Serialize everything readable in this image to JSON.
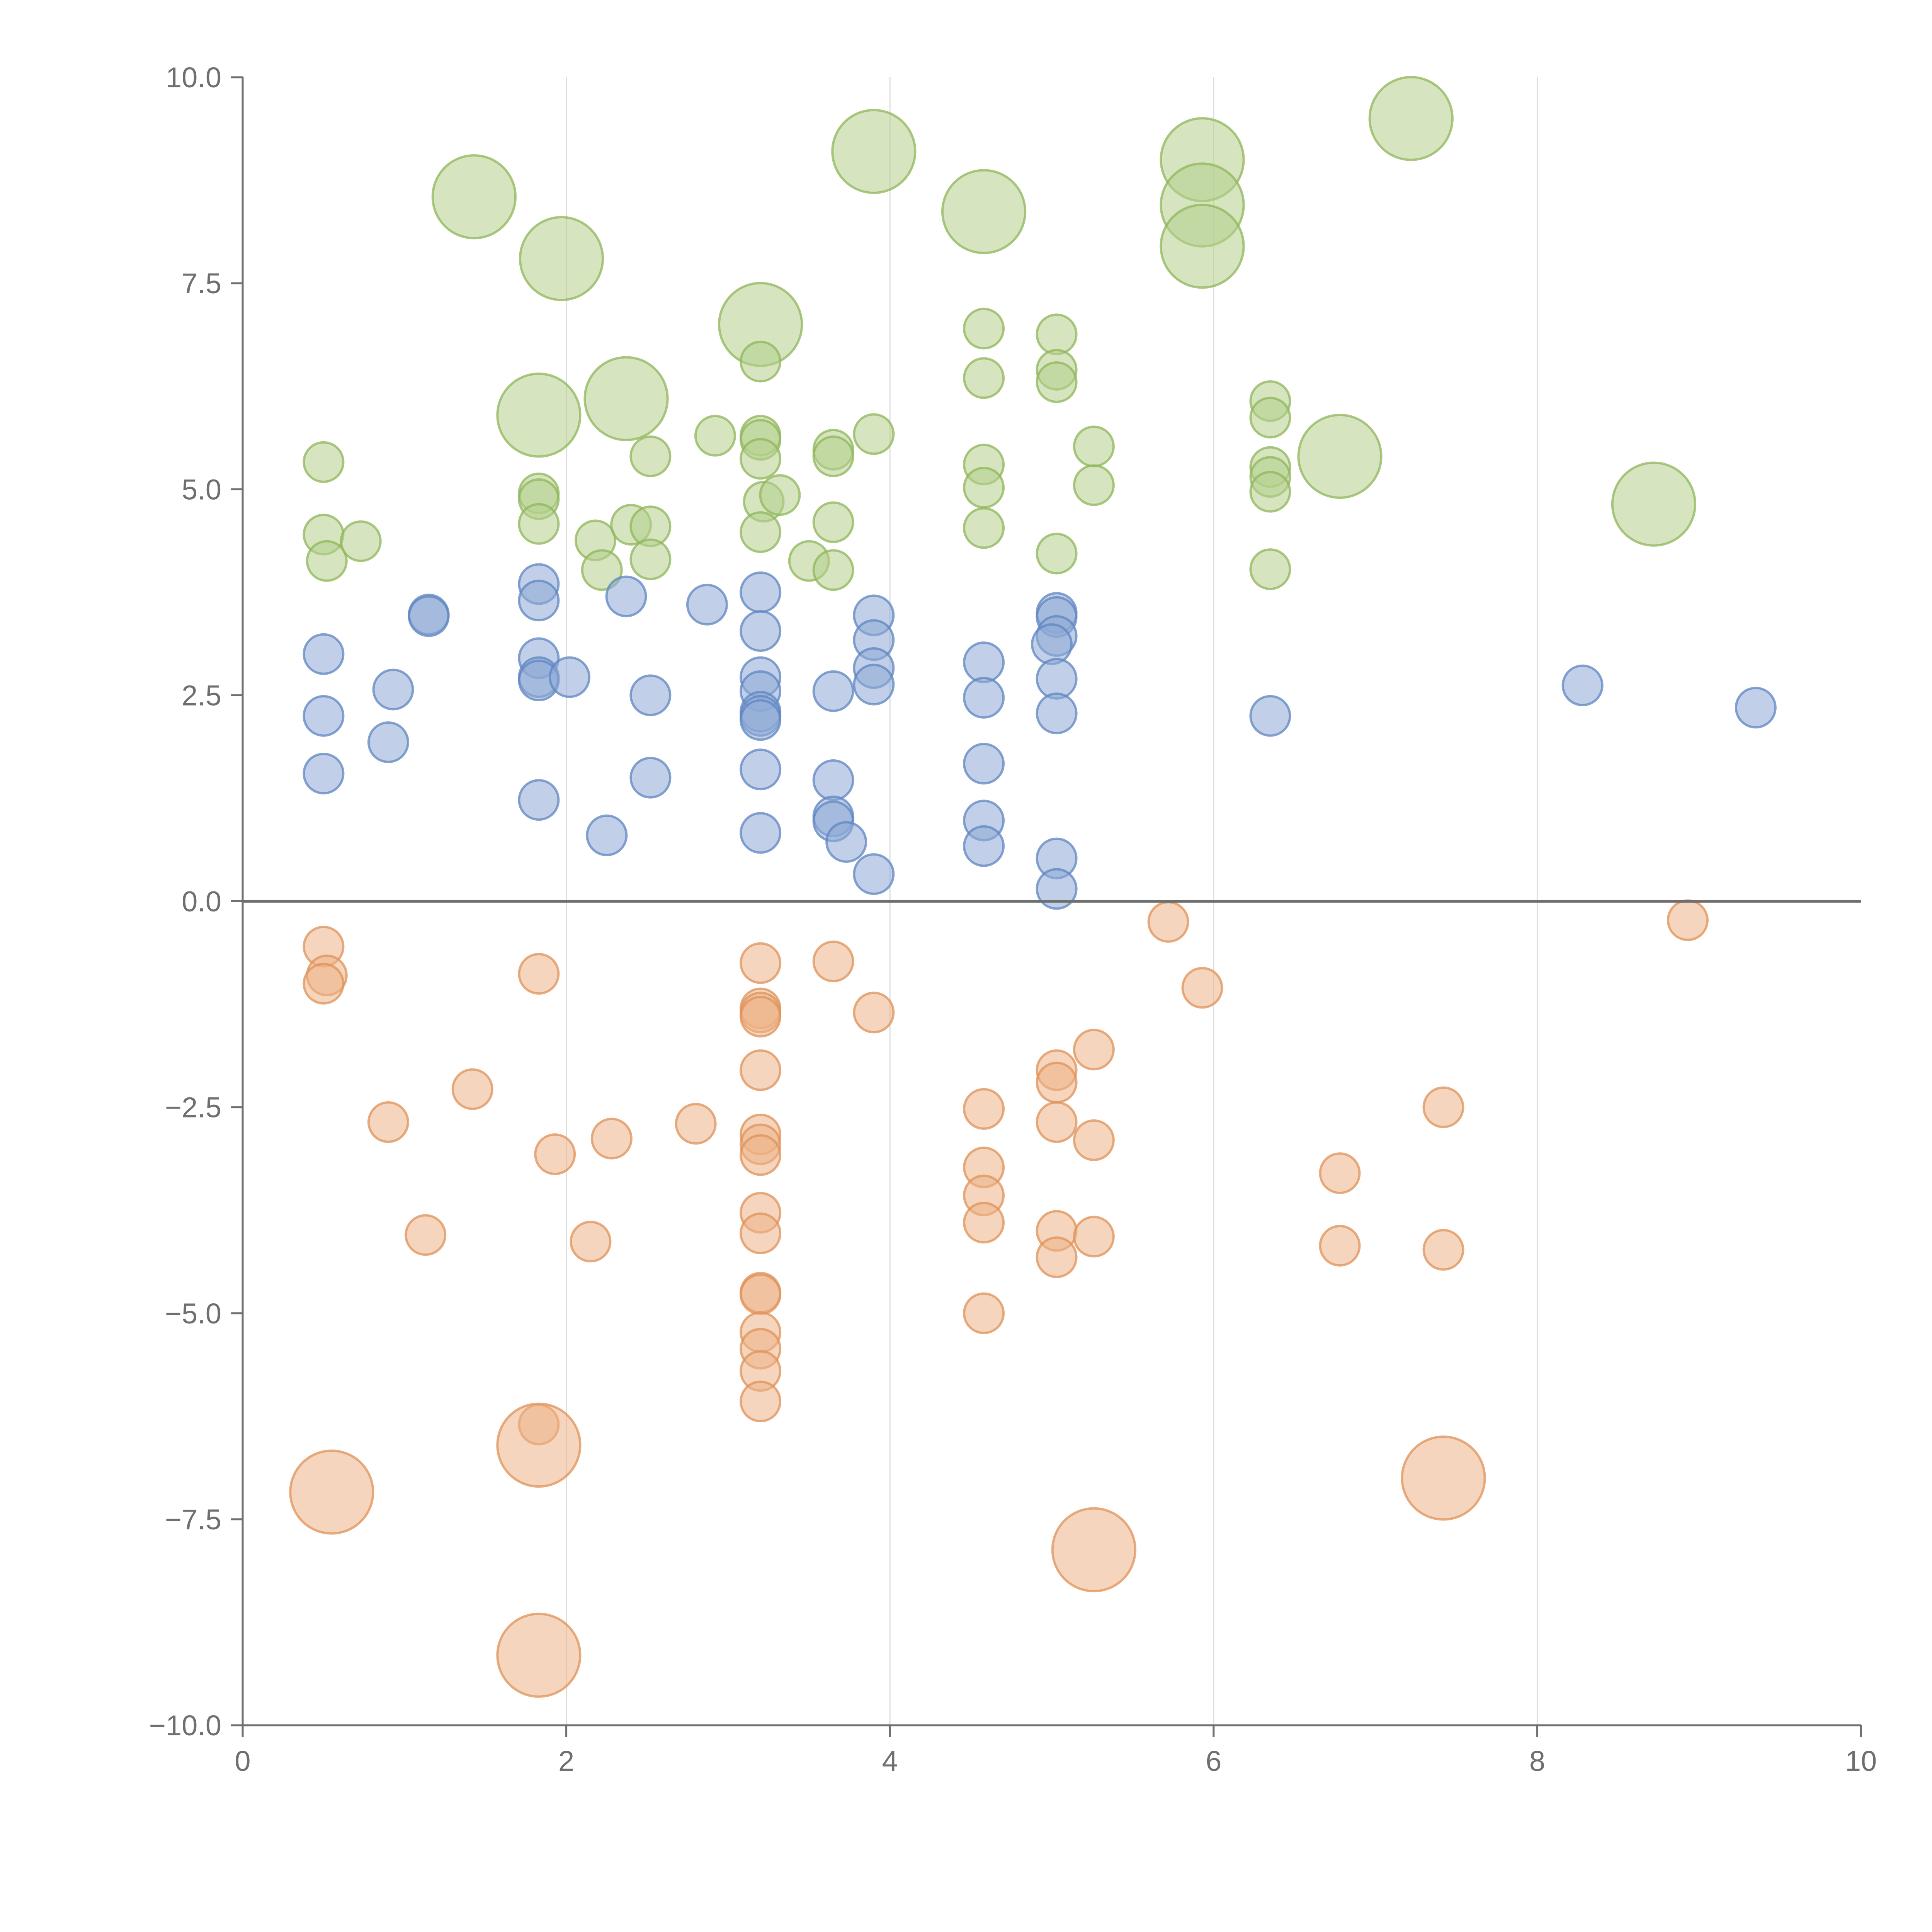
{
  "chart_data": {
    "type": "scatter",
    "title": "",
    "xlabel": "",
    "ylabel": "",
    "xlim": [
      0,
      10
    ],
    "ylim": [
      -10,
      10
    ],
    "grid": "vertical",
    "zero_line": true,
    "x_ticks": [
      "0",
      "2",
      "4",
      "6",
      "8",
      "10"
    ],
    "y_ticks": [
      "10.0",
      "7.5",
      "5.0",
      "2.5",
      "0.0",
      "−2.5",
      "−5.0",
      "−7.5",
      "−10.0"
    ],
    "colors": {
      "green_fill": "#b5d08c",
      "green_stroke": "#8fb55a",
      "blue_fill": "#8eaad6",
      "blue_stroke": "#5f86c2",
      "orange_fill": "#ecb387",
      "orange_stroke": "#df9258",
      "axis": "#6f6f6f",
      "grid": "#dddddd"
    },
    "size_scale": "s is relative bubble size (1 = small marker)",
    "series": [
      {
        "name": "green",
        "points": [
          {
            "x": 0.5,
            "y": 5.33,
            "s": 1
          },
          {
            "x": 0.5,
            "y": 4.45,
            "s": 1
          },
          {
            "x": 0.52,
            "y": 4.13,
            "s": 1
          },
          {
            "x": 0.73,
            "y": 4.37,
            "s": 1
          },
          {
            "x": 1.43,
            "y": 8.55,
            "s": 2.1
          },
          {
            "x": 1.83,
            "y": 5.9,
            "s": 2.1
          },
          {
            "x": 1.83,
            "y": 4.95,
            "s": 1
          },
          {
            "x": 1.83,
            "y": 4.88,
            "s": 1
          },
          {
            "x": 1.83,
            "y": 4.58,
            "s": 1
          },
          {
            "x": 1.97,
            "y": 7.8,
            "s": 2.1
          },
          {
            "x": 2.18,
            "y": 4.38,
            "s": 1
          },
          {
            "x": 2.22,
            "y": 4.02,
            "s": 1
          },
          {
            "x": 2.37,
            "y": 6.1,
            "s": 2.1
          },
          {
            "x": 2.4,
            "y": 4.57,
            "s": 1
          },
          {
            "x": 2.52,
            "y": 5.4,
            "s": 1
          },
          {
            "x": 2.52,
            "y": 4.55,
            "s": 1
          },
          {
            "x": 2.52,
            "y": 4.15,
            "s": 1
          },
          {
            "x": 2.92,
            "y": 5.65,
            "s": 1
          },
          {
            "x": 3.2,
            "y": 7.0,
            "s": 2.1
          },
          {
            "x": 3.2,
            "y": 6.55,
            "s": 1
          },
          {
            "x": 3.2,
            "y": 5.65,
            "s": 1
          },
          {
            "x": 3.2,
            "y": 5.6,
            "s": 1
          },
          {
            "x": 3.2,
            "y": 5.37,
            "s": 1
          },
          {
            "x": 3.22,
            "y": 4.85,
            "s": 1
          },
          {
            "x": 3.32,
            "y": 4.93,
            "s": 1
          },
          {
            "x": 3.2,
            "y": 4.48,
            "s": 1
          },
          {
            "x": 3.5,
            "y": 4.13,
            "s": 1
          },
          {
            "x": 3.65,
            "y": 5.48,
            "s": 1
          },
          {
            "x": 3.65,
            "y": 5.4,
            "s": 1
          },
          {
            "x": 3.65,
            "y": 4.6,
            "s": 1
          },
          {
            "x": 3.65,
            "y": 4.02,
            "s": 1
          },
          {
            "x": 3.9,
            "y": 9.1,
            "s": 2.1
          },
          {
            "x": 3.9,
            "y": 5.67,
            "s": 1
          },
          {
            "x": 4.58,
            "y": 8.37,
            "s": 2.1
          },
          {
            "x": 4.58,
            "y": 6.95,
            "s": 1
          },
          {
            "x": 4.58,
            "y": 6.35,
            "s": 1
          },
          {
            "x": 4.58,
            "y": 5.3,
            "s": 1
          },
          {
            "x": 4.58,
            "y": 5.02,
            "s": 1
          },
          {
            "x": 4.58,
            "y": 4.53,
            "s": 1
          },
          {
            "x": 5.03,
            "y": 6.88,
            "s": 1
          },
          {
            "x": 5.03,
            "y": 6.45,
            "s": 1
          },
          {
            "x": 5.03,
            "y": 6.3,
            "s": 1
          },
          {
            "x": 5.03,
            "y": 4.22,
            "s": 1
          },
          {
            "x": 5.26,
            "y": 5.52,
            "s": 1
          },
          {
            "x": 5.26,
            "y": 5.05,
            "s": 1
          },
          {
            "x": 5.93,
            "y": 9.0,
            "s": 2.1
          },
          {
            "x": 5.93,
            "y": 8.45,
            "s": 2.1
          },
          {
            "x": 5.93,
            "y": 7.95,
            "s": 2.1
          },
          {
            "x": 6.35,
            "y": 6.07,
            "s": 1
          },
          {
            "x": 6.35,
            "y": 5.87,
            "s": 1
          },
          {
            "x": 6.35,
            "y": 5.27,
            "s": 1
          },
          {
            "x": 6.35,
            "y": 5.15,
            "s": 1
          },
          {
            "x": 6.35,
            "y": 4.97,
            "s": 1
          },
          {
            "x": 6.35,
            "y": 4.03,
            "s": 1
          },
          {
            "x": 6.78,
            "y": 5.4,
            "s": 2.1
          },
          {
            "x": 7.22,
            "y": 9.5,
            "s": 2.1
          },
          {
            "x": 8.72,
            "y": 4.82,
            "s": 2.1
          }
        ]
      },
      {
        "name": "blue",
        "points": [
          {
            "x": 0.5,
            "y": 3.0,
            "s": 1
          },
          {
            "x": 0.5,
            "y": 2.25,
            "s": 1
          },
          {
            "x": 0.5,
            "y": 1.55,
            "s": 1
          },
          {
            "x": 0.9,
            "y": 1.93,
            "s": 1
          },
          {
            "x": 0.93,
            "y": 2.57,
            "s": 1
          },
          {
            "x": 1.15,
            "y": 3.48,
            "s": 1
          },
          {
            "x": 1.15,
            "y": 3.46,
            "s": 1
          },
          {
            "x": 1.83,
            "y": 3.85,
            "s": 1
          },
          {
            "x": 1.83,
            "y": 3.65,
            "s": 1
          },
          {
            "x": 1.83,
            "y": 2.95,
            "s": 1
          },
          {
            "x": 1.83,
            "y": 2.72,
            "s": 1
          },
          {
            "x": 1.83,
            "y": 2.68,
            "s": 1
          },
          {
            "x": 1.83,
            "y": 1.23,
            "s": 1
          },
          {
            "x": 2.02,
            "y": 2.72,
            "s": 1
          },
          {
            "x": 2.25,
            "y": 0.8,
            "s": 1
          },
          {
            "x": 2.37,
            "y": 3.7,
            "s": 1
          },
          {
            "x": 2.52,
            "y": 2.5,
            "s": 1
          },
          {
            "x": 2.52,
            "y": 1.5,
            "s": 1
          },
          {
            "x": 2.87,
            "y": 3.6,
            "s": 1
          },
          {
            "x": 3.2,
            "y": 3.75,
            "s": 1
          },
          {
            "x": 3.2,
            "y": 3.28,
            "s": 1
          },
          {
            "x": 3.2,
            "y": 2.72,
            "s": 1
          },
          {
            "x": 3.2,
            "y": 2.55,
            "s": 1
          },
          {
            "x": 3.2,
            "y": 2.3,
            "s": 1
          },
          {
            "x": 3.2,
            "y": 2.25,
            "s": 1
          },
          {
            "x": 3.2,
            "y": 2.2,
            "s": 1
          },
          {
            "x": 3.2,
            "y": 1.6,
            "s": 1
          },
          {
            "x": 3.2,
            "y": 0.83,
            "s": 1
          },
          {
            "x": 3.65,
            "y": 2.55,
            "s": 1
          },
          {
            "x": 3.65,
            "y": 1.47,
            "s": 1
          },
          {
            "x": 3.65,
            "y": 1.03,
            "s": 1
          },
          {
            "x": 3.65,
            "y": 0.97,
            "s": 1
          },
          {
            "x": 3.73,
            "y": 0.72,
            "s": 1
          },
          {
            "x": 3.9,
            "y": 3.47,
            "s": 1
          },
          {
            "x": 3.9,
            "y": 3.17,
            "s": 1
          },
          {
            "x": 3.9,
            "y": 2.83,
            "s": 1
          },
          {
            "x": 3.9,
            "y": 2.63,
            "s": 1
          },
          {
            "x": 3.9,
            "y": 0.33,
            "s": 1
          },
          {
            "x": 4.58,
            "y": 2.9,
            "s": 1
          },
          {
            "x": 4.58,
            "y": 2.47,
            "s": 1
          },
          {
            "x": 4.58,
            "y": 1.67,
            "s": 1
          },
          {
            "x": 4.58,
            "y": 0.98,
            "s": 1
          },
          {
            "x": 4.58,
            "y": 0.67,
            "s": 1
          },
          {
            "x": 5.03,
            "y": 3.5,
            "s": 1
          },
          {
            "x": 5.03,
            "y": 3.45,
            "s": 1
          },
          {
            "x": 5.03,
            "y": 3.22,
            "s": 1
          },
          {
            "x": 5.0,
            "y": 3.12,
            "s": 1
          },
          {
            "x": 5.03,
            "y": 2.7,
            "s": 1
          },
          {
            "x": 5.03,
            "y": 2.28,
            "s": 1
          },
          {
            "x": 5.03,
            "y": 0.52,
            "s": 1
          },
          {
            "x": 5.03,
            "y": 0.15,
            "s": 1
          },
          {
            "x": 6.35,
            "y": 2.25,
            "s": 1
          },
          {
            "x": 8.28,
            "y": 2.62,
            "s": 1
          },
          {
            "x": 9.35,
            "y": 2.35,
            "s": 1
          }
        ]
      },
      {
        "name": "orange",
        "points": [
          {
            "x": 0.5,
            "y": -0.55,
            "s": 1
          },
          {
            "x": 0.52,
            "y": -0.9,
            "s": 1
          },
          {
            "x": 0.5,
            "y": -1.0,
            "s": 1
          },
          {
            "x": 0.55,
            "y": -7.17,
            "s": 2.1
          },
          {
            "x": 0.9,
            "y": -2.68,
            "s": 1
          },
          {
            "x": 1.13,
            "y": -4.05,
            "s": 1
          },
          {
            "x": 1.42,
            "y": -2.28,
            "s": 1
          },
          {
            "x": 1.83,
            "y": -0.88,
            "s": 1
          },
          {
            "x": 1.83,
            "y": -6.35,
            "s": 1
          },
          {
            "x": 1.83,
            "y": -6.6,
            "s": 2.1
          },
          {
            "x": 1.83,
            "y": -9.15,
            "s": 2.1
          },
          {
            "x": 1.93,
            "y": -3.07,
            "s": 1
          },
          {
            "x": 2.15,
            "y": -4.13,
            "s": 1
          },
          {
            "x": 2.28,
            "y": -2.88,
            "s": 1
          },
          {
            "x": 2.8,
            "y": -2.7,
            "s": 1
          },
          {
            "x": 3.2,
            "y": -0.75,
            "s": 1
          },
          {
            "x": 3.2,
            "y": -1.3,
            "s": 1
          },
          {
            "x": 3.2,
            "y": -1.35,
            "s": 1
          },
          {
            "x": 3.2,
            "y": -1.4,
            "s": 1
          },
          {
            "x": 3.2,
            "y": -2.05,
            "s": 1
          },
          {
            "x": 3.2,
            "y": -2.83,
            "s": 1
          },
          {
            "x": 3.2,
            "y": -2.95,
            "s": 1
          },
          {
            "x": 3.2,
            "y": -3.08,
            "s": 1
          },
          {
            "x": 3.2,
            "y": -3.78,
            "s": 1
          },
          {
            "x": 3.2,
            "y": -4.03,
            "s": 1
          },
          {
            "x": 3.2,
            "y": -4.75,
            "s": 1
          },
          {
            "x": 3.2,
            "y": -4.77,
            "s": 1
          },
          {
            "x": 3.2,
            "y": -5.23,
            "s": 1
          },
          {
            "x": 3.2,
            "y": -5.43,
            "s": 1
          },
          {
            "x": 3.2,
            "y": -5.7,
            "s": 1
          },
          {
            "x": 3.2,
            "y": -6.07,
            "s": 1
          },
          {
            "x": 3.65,
            "y": -0.73,
            "s": 1
          },
          {
            "x": 3.9,
            "y": -1.35,
            "s": 1
          },
          {
            "x": 4.58,
            "y": -2.52,
            "s": 1
          },
          {
            "x": 4.58,
            "y": -3.23,
            "s": 1
          },
          {
            "x": 4.58,
            "y": -3.57,
            "s": 1
          },
          {
            "x": 4.58,
            "y": -3.9,
            "s": 1
          },
          {
            "x": 4.58,
            "y": -5.0,
            "s": 1
          },
          {
            "x": 5.03,
            "y": -2.05,
            "s": 1
          },
          {
            "x": 5.03,
            "y": -2.2,
            "s": 1
          },
          {
            "x": 5.03,
            "y": -2.68,
            "s": 1
          },
          {
            "x": 5.03,
            "y": -4.0,
            "s": 1
          },
          {
            "x": 5.03,
            "y": -4.32,
            "s": 1
          },
          {
            "x": 5.26,
            "y": -1.8,
            "s": 1
          },
          {
            "x": 5.26,
            "y": -2.9,
            "s": 1
          },
          {
            "x": 5.26,
            "y": -4.07,
            "s": 1
          },
          {
            "x": 5.26,
            "y": -7.87,
            "s": 2.1
          },
          {
            "x": 5.72,
            "y": -0.25,
            "s": 1
          },
          {
            "x": 5.93,
            "y": -1.05,
            "s": 1
          },
          {
            "x": 6.78,
            "y": -3.3,
            "s": 1
          },
          {
            "x": 6.78,
            "y": -4.18,
            "s": 1
          },
          {
            "x": 7.42,
            "y": -2.5,
            "s": 1
          },
          {
            "x": 7.42,
            "y": -4.23,
            "s": 1
          },
          {
            "x": 7.42,
            "y": -7.0,
            "s": 2.1
          },
          {
            "x": 8.93,
            "y": -0.23,
            "s": 1
          }
        ]
      }
    ]
  }
}
